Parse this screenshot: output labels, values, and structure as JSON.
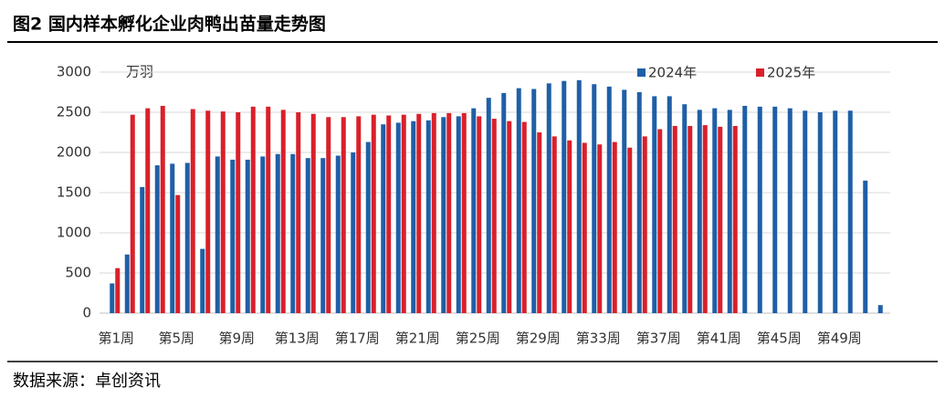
{
  "title": "图2 国内样本孵化企业肉鸭出苗量走势图",
  "source": "数据来源：卓创资讯",
  "chart_data": {
    "type": "bar",
    "unit_label": "万羽",
    "categories": [
      "第1周",
      null,
      null,
      null,
      "第5周",
      null,
      null,
      null,
      "第9周",
      null,
      null,
      null,
      "第13周",
      null,
      null,
      null,
      "第17周",
      null,
      null,
      null,
      "第21周",
      null,
      null,
      null,
      "第25周",
      null,
      null,
      null,
      "第29周",
      null,
      null,
      null,
      "第33周",
      null,
      null,
      null,
      "第37周",
      null,
      null,
      null,
      "第41周",
      null,
      null,
      null,
      "第45周",
      null,
      null,
      null,
      "第49周",
      null,
      null,
      null
    ],
    "series": [
      {
        "name": "2024年",
        "color": "#1f5fa6",
        "values": [
          370,
          730,
          1570,
          1840,
          1860,
          1870,
          800,
          1950,
          1910,
          1910,
          1950,
          1980,
          1980,
          1930,
          1930,
          1960,
          2000,
          2130,
          2350,
          2370,
          2390,
          2400,
          2440,
          2450,
          2550,
          2680,
          2740,
          2800,
          2790,
          2860,
          2890,
          2900,
          2850,
          2820,
          2780,
          2750,
          2700,
          2700,
          2600,
          2530,
          2550,
          2530,
          2580,
          2570,
          2570,
          2550,
          2520,
          2500,
          2520,
          2520,
          1650,
          100
        ]
      },
      {
        "name": "2025年",
        "color": "#d9202a",
        "values": [
          560,
          2470,
          2550,
          2580,
          1470,
          2540,
          2520,
          2510,
          2500,
          2570,
          2570,
          2530,
          2500,
          2480,
          2440,
          2440,
          2450,
          2470,
          2460,
          2470,
          2480,
          2490,
          2490,
          2490,
          2450,
          2420,
          2390,
          2380,
          2250,
          2200,
          2150,
          2120,
          2100,
          2130,
          2060,
          2200,
          2290,
          2330,
          2330,
          2340,
          2320,
          2330,
          null,
          null,
          null,
          null,
          null,
          null,
          null,
          null,
          null,
          null
        ]
      }
    ],
    "ylim": [
      0,
      3000
    ],
    "yticks": [
      0,
      500,
      1000,
      1500,
      2000,
      2500,
      3000
    ],
    "legend": "top-right"
  }
}
